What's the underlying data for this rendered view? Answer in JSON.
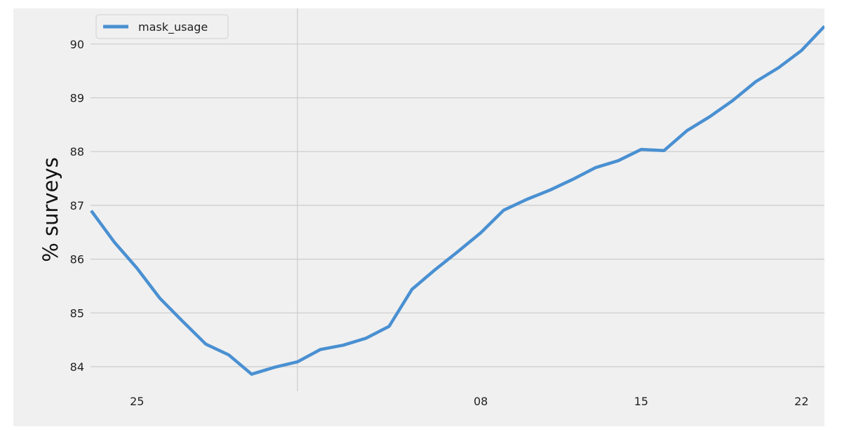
{
  "chart_data": {
    "type": "line",
    "title": "",
    "xlabel": "",
    "ylabel": "% surveys",
    "ylim": [
      83.5,
      90.6
    ],
    "yticks": [
      84,
      85,
      86,
      87,
      88,
      89,
      90
    ],
    "xticks": [
      "25",
      "08",
      "15",
      "22"
    ],
    "grid": true,
    "legend": {
      "position": "top-left"
    },
    "colors": {
      "line": "#4a90d2",
      "grid": "#cbcbcb",
      "background": "#f0f0f0"
    },
    "series": [
      {
        "name": "mask_usage",
        "values": [
          86.9,
          86.32,
          85.83,
          85.27,
          84.84,
          84.42,
          84.22,
          83.86,
          83.99,
          84.09,
          84.32,
          84.4,
          84.53,
          84.75,
          85.44,
          85.8,
          86.14,
          86.49,
          86.91,
          87.11,
          87.28,
          87.48,
          87.7,
          87.83,
          88.04,
          88.02,
          88.39,
          88.65,
          88.95,
          89.3,
          89.56,
          89.88,
          90.33
        ]
      }
    ]
  }
}
